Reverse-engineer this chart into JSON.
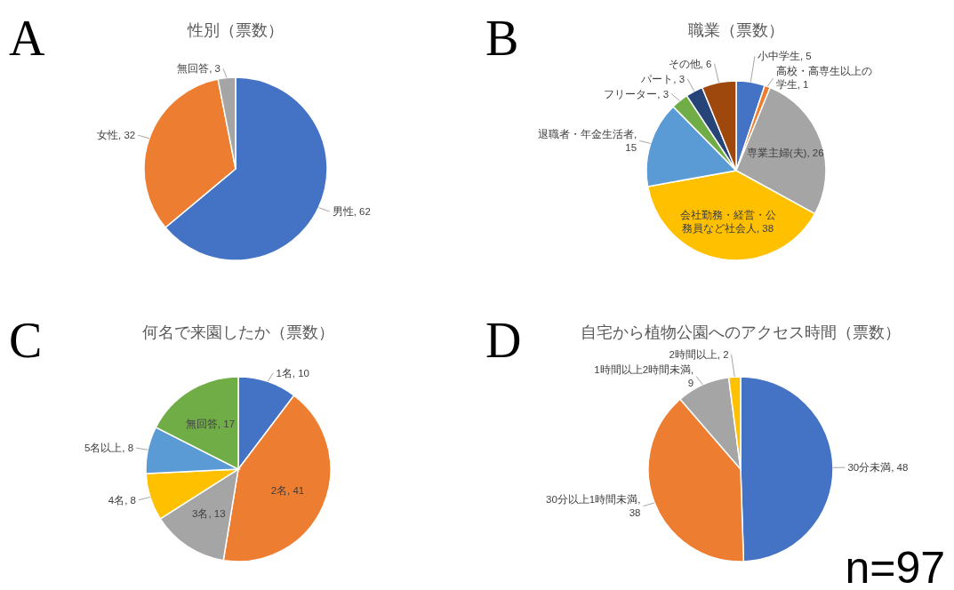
{
  "chart_data": [
    {
      "type": "pie",
      "title": "性別（票数）",
      "annotations": [
        "A"
      ],
      "categories": [
        "男性",
        "女性",
        "無回答"
      ],
      "values": [
        62,
        32,
        3
      ],
      "value_labels": [
        ", 62",
        ", 32",
        ", 3"
      ],
      "colors": [
        "#4472c4",
        "#ed7d31",
        "#a5a5a5"
      ]
    },
    {
      "type": "pie",
      "title": "職業（票数）",
      "annotations": [
        "B"
      ],
      "categories": [
        "小中学生",
        "高校・高専生以上の学生",
        "専業主婦(夫)",
        "会社勤務・経営・公務員など社会人",
        "退職者・年金生活者",
        "フリーター",
        "パート",
        "その他"
      ],
      "values": [
        5,
        1,
        26,
        38,
        15,
        3,
        3,
        6
      ],
      "value_labels": [
        ", 5",
        ", 1",
        ", 26",
        ", 38",
        ", 15",
        ", 3",
        ", 3",
        ", 6"
      ],
      "colors": [
        "#4472c4",
        "#ed7d31",
        "#a5a5a5",
        "#ffc000",
        "#5b9bd5",
        "#70ad47",
        "#264478",
        "#9e480e"
      ]
    },
    {
      "type": "pie",
      "title": "何名で来園したか（票数）",
      "annotations": [
        "C"
      ],
      "categories": [
        "1名",
        "2名",
        "3名",
        "4名",
        "5名以上",
        "無回答"
      ],
      "values": [
        10,
        41,
        13,
        8,
        8,
        17
      ],
      "value_labels": [
        ", 10",
        ", 41",
        ", 13",
        ", 8",
        ", 8",
        ", 17"
      ],
      "colors": [
        "#4472c4",
        "#ed7d31",
        "#a5a5a5",
        "#ffc000",
        "#5b9bd5",
        "#70ad47"
      ]
    },
    {
      "type": "pie",
      "title": "自宅から植物公園へのアクセス時間（票数）",
      "annotations": [
        "D",
        "n=97"
      ],
      "categories": [
        "30分未満",
        "30分以上1時間未満",
        "1時間以上2時間未満",
        "2時間以上"
      ],
      "values": [
        48,
        38,
        9,
        2
      ],
      "value_labels": [
        ", 48",
        ", 38",
        ", 9",
        ", 2"
      ],
      "colors": [
        "#4472c4",
        "#ed7d31",
        "#a5a5a5",
        "#ffc000"
      ]
    }
  ]
}
